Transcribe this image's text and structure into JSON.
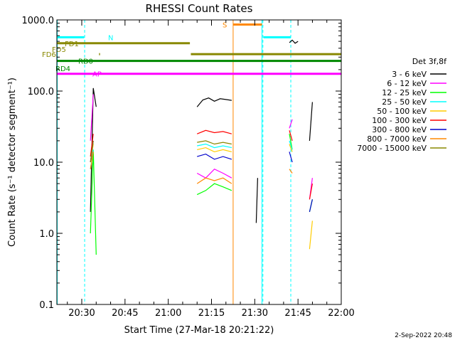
{
  "chart_data": {
    "type": "line",
    "title": "RHESSI Count Rates",
    "xlabel": "Start Time (27-Mar-18 20:21:22)",
    "ylabel": "Count Rate (s⁻¹ detector segment⁻¹)",
    "yscale": "log",
    "ylim": [
      0.1,
      1000
    ],
    "xlim": [
      "20:21:22",
      "22:00:00"
    ],
    "x_ticks": [
      "20:30",
      "20:45",
      "21:00",
      "21:15",
      "21:30",
      "21:45",
      "22:00"
    ],
    "y_ticks": [
      "0.1",
      "1.0",
      "10.0",
      "100.0",
      "1000.0"
    ],
    "legend_title": "Det 3f,8f",
    "legend_position": "right",
    "footer": "2-Sep-2022 20:48",
    "series": [
      {
        "name": "3 - 6 keV",
        "color": "#000000",
        "segments": [
          {
            "x": [
              "20:33:00",
              "20:34:00",
              "20:35:00"
            ],
            "y": [
              2,
              110,
              60
            ]
          },
          {
            "x": [
              "21:10:00",
              "21:12:00",
              "21:14:00",
              "21:16:00",
              "21:18:00",
              "21:20:00",
              "21:22:00"
            ],
            "y": [
              60,
              75,
              80,
              72,
              78,
              76,
              74
            ]
          },
          {
            "x": [
              "21:30:30",
              "21:31:00"
            ],
            "y": [
              1.4,
              6
            ]
          },
          {
            "x": [
              "21:42:00",
              "21:43:00",
              "21:44:00",
              "21:45:00"
            ],
            "y": [
              480,
              520,
              470,
              500
            ]
          },
          {
            "x": [
              "21:49:00",
              "21:50:00"
            ],
            "y": [
              20,
              70
            ]
          }
        ]
      },
      {
        "name": "6 - 12 keV",
        "color": "#ff00ff",
        "segments": [
          {
            "x": [
              "20:33:00",
              "20:34:00"
            ],
            "y": [
              20,
              90
            ]
          },
          {
            "x": [
              "21:10:00",
              "21:13:00",
              "21:16:00",
              "21:19:00",
              "21:22:00"
            ],
            "y": [
              7,
              6,
              8,
              7,
              6
            ]
          },
          {
            "x": [
              "21:42:00",
              "21:43:00"
            ],
            "y": [
              30,
              40
            ]
          },
          {
            "x": [
              "21:49:00",
              "21:50:00"
            ],
            "y": [
              3,
              6
            ]
          }
        ]
      },
      {
        "name": "12 - 25 keV",
        "color": "#00ff00",
        "segments": [
          {
            "x": [
              "20:33:00",
              "20:34:00",
              "20:35:00"
            ],
            "y": [
              1.0,
              15,
              0.5
            ]
          },
          {
            "x": [
              "21:10:00",
              "21:13:00",
              "21:16:00",
              "21:19:00",
              "21:22:00"
            ],
            "y": [
              3.5,
              4,
              5,
              4.5,
              4
            ]
          },
          {
            "x": [
              "21:42:00",
              "21:43:00"
            ],
            "y": [
              25,
              15
            ]
          },
          {
            "x": [
              "21:49:00",
              "21:50:00"
            ],
            "y": [
              2,
              3
            ]
          }
        ]
      },
      {
        "name": "25 - 50 keV",
        "color": "#00ffff",
        "segments": [
          {
            "x": [
              "20:33:00",
              "20:34:00"
            ],
            "y": [
              8,
              15
            ]
          },
          {
            "x": [
              "21:10:00",
              "21:13:00",
              "21:16:00",
              "21:19:00",
              "21:22:00"
            ],
            "y": [
              17,
              18,
              16,
              17,
              16
            ]
          },
          {
            "x": [
              "21:42:00",
              "21:43:00"
            ],
            "y": [
              20,
              15
            ]
          }
        ]
      },
      {
        "name": "50 - 100 keV",
        "color": "#ffcc00",
        "segments": [
          {
            "x": [
              "20:33:00",
              "20:34:00"
            ],
            "y": [
              10,
              18
            ]
          },
          {
            "x": [
              "21:10:00",
              "21:13:00",
              "21:16:00",
              "21:19:00",
              "21:22:00"
            ],
            "y": [
              15,
              16,
              14,
              15,
              14
            ]
          },
          {
            "x": [
              "21:42:00",
              "21:43:00"
            ],
            "y": [
              18,
              14
            ]
          },
          {
            "x": [
              "21:49:00",
              "21:50:00"
            ],
            "y": [
              0.6,
              1.5
            ]
          }
        ]
      },
      {
        "name": "100 - 300 keV",
        "color": "#ff0000",
        "segments": [
          {
            "x": [
              "20:33:00",
              "20:34:00"
            ],
            "y": [
              12,
              25
            ]
          },
          {
            "x": [
              "21:10:00",
              "21:13:00",
              "21:16:00",
              "21:19:00",
              "21:22:00"
            ],
            "y": [
              25,
              28,
              26,
              27,
              25
            ]
          },
          {
            "x": [
              "21:42:00",
              "21:43:00"
            ],
            "y": [
              28,
              20
            ]
          },
          {
            "x": [
              "21:49:00",
              "21:50:00"
            ],
            "y": [
              3,
              5
            ]
          }
        ]
      },
      {
        "name": "300 - 800 keV",
        "color": "#0000cc",
        "segments": [
          {
            "x": [
              "20:33:00",
              "20:34:00"
            ],
            "y": [
              10,
              20
            ]
          },
          {
            "x": [
              "21:10:00",
              "21:13:00",
              "21:16:00",
              "21:19:00",
              "21:22:00"
            ],
            "y": [
              12,
              13,
              11,
              12,
              11
            ]
          },
          {
            "x": [
              "21:42:00",
              "21:43:00"
            ],
            "y": [
              14,
              10
            ]
          },
          {
            "x": [
              "21:49:00",
              "21:50:00"
            ],
            "y": [
              2,
              3
            ]
          }
        ]
      },
      {
        "name": "800 - 7000 keV",
        "color": "#ff8800",
        "segments": [
          {
            "x": [
              "20:33:00",
              "20:34:00"
            ],
            "y": [
              8,
              14
            ]
          },
          {
            "x": [
              "21:10:00",
              "21:13:00",
              "21:16:00",
              "21:19:00",
              "21:22:00"
            ],
            "y": [
              5,
              6,
              5.5,
              6,
              5
            ]
          },
          {
            "x": [
              "21:42:00",
              "21:43:00"
            ],
            "y": [
              8,
              7
            ]
          }
        ]
      },
      {
        "name": "7000 - 15000 keV",
        "color": "#888800",
        "segments": [
          {
            "x": [
              "20:33:00",
              "20:34:00"
            ],
            "y": [
              10,
              20
            ]
          },
          {
            "x": [
              "21:10:00",
              "21:13:00",
              "21:16:00",
              "21:19:00",
              "21:22:00"
            ],
            "y": [
              19,
              20,
              18,
              19,
              18
            ]
          }
        ]
      }
    ],
    "vertical_lines": [
      {
        "x": "20:21:30",
        "color": "#00ffff",
        "style": "solid"
      },
      {
        "x": "20:31:00",
        "color": "#00ffff",
        "style": "dashed"
      },
      {
        "x": "21:22:30",
        "color": "#ff8800",
        "style": "solid"
      },
      {
        "x": "21:32:30",
        "color": "#00ffff",
        "style": "solid"
      },
      {
        "x": "21:32:50",
        "color": "#00ffff",
        "style": "dashed"
      },
      {
        "x": "21:42:30",
        "color": "#00ffff",
        "style": "dashed"
      }
    ],
    "flag_bars": [
      {
        "label": "N",
        "color": "#00ffff",
        "y": 570,
        "segments": [
          [
            "20:21:22",
            "20:30:50"
          ],
          [
            "21:33:00",
            "21:42:30"
          ]
        ]
      },
      {
        "label": "FD1",
        "color": "#888800",
        "y": 470,
        "segments": [
          [
            "20:21:22",
            "21:07:30"
          ]
        ]
      },
      {
        "label": "FD5",
        "color": "#888800",
        "y": 390,
        "segments": []
      },
      {
        "label": "FD6",
        "color": "#888800",
        "y": 330,
        "segments": [
          [
            "20:36:00",
            "20:36:20"
          ],
          [
            "21:07:50",
            "22:00:00"
          ]
        ]
      },
      {
        "label": "RD0",
        "color": "#008800",
        "y": 265,
        "segments": [
          [
            "20:21:22",
            "22:00:00"
          ]
        ]
      },
      {
        "label": "RD4",
        "color": "#008800",
        "y": 210,
        "segments": []
      },
      {
        "label": "AP",
        "color": "#ff00ff",
        "y": 175,
        "segments": [
          [
            "20:21:22",
            "22:00:00"
          ]
        ]
      },
      {
        "label": "S",
        "color": "#ff8800",
        "y": 860,
        "segments": [
          [
            "21:22:30",
            "21:32:30"
          ]
        ]
      }
    ]
  }
}
